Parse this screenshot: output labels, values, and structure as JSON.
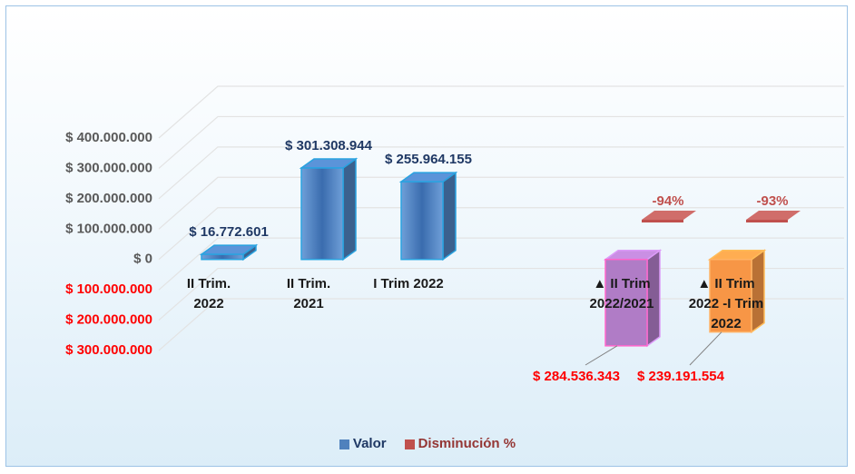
{
  "chart_data": {
    "type": "bar3d",
    "categories": [
      "II Trim. 2022",
      "II Trim. 2021",
      "I Trim 2022",
      "▲ II Trim 2022/2021",
      "▲ II Trim 2022 -I Trim 2022"
    ],
    "series": [
      {
        "name": "Valor",
        "color": "#4f81bd",
        "point_colors": [
          "#4f81bd",
          "#4f81bd",
          "#4f81bd",
          "#b07cc6",
          "#f79646"
        ],
        "values": [
          16772601,
          301308944,
          255964155,
          -284536343,
          -239191554
        ],
        "value_labels": [
          "$ 16.772.601",
          "$ 301.308.944",
          "$ 255.964.155",
          "$ 284.536.343",
          "$ 239.191.554"
        ]
      },
      {
        "name": "Disminución %",
        "color": "#c0504d",
        "values": [
          null,
          null,
          null,
          -94,
          -93
        ],
        "value_labels": [
          null,
          null,
          null,
          "-94%",
          "-93%"
        ]
      }
    ],
    "ylim": [
      -300000000,
      400000000
    ],
    "yticks": [
      {
        "value": 400000000,
        "label": "$ 400.000.000"
      },
      {
        "value": 300000000,
        "label": "$ 300.000.000"
      },
      {
        "value": 200000000,
        "label": "$ 200.000.000"
      },
      {
        "value": 100000000,
        "label": "$ 100.000.000"
      },
      {
        "value": 0,
        "label": "$ 0"
      },
      {
        "value": -100000000,
        "label": "$ 100.000.000"
      },
      {
        "value": -200000000,
        "label": "$ 200.000.000"
      },
      {
        "value": -300000000,
        "label": "$ 300.000.000"
      }
    ],
    "grid": true,
    "legend": "bottom"
  }
}
